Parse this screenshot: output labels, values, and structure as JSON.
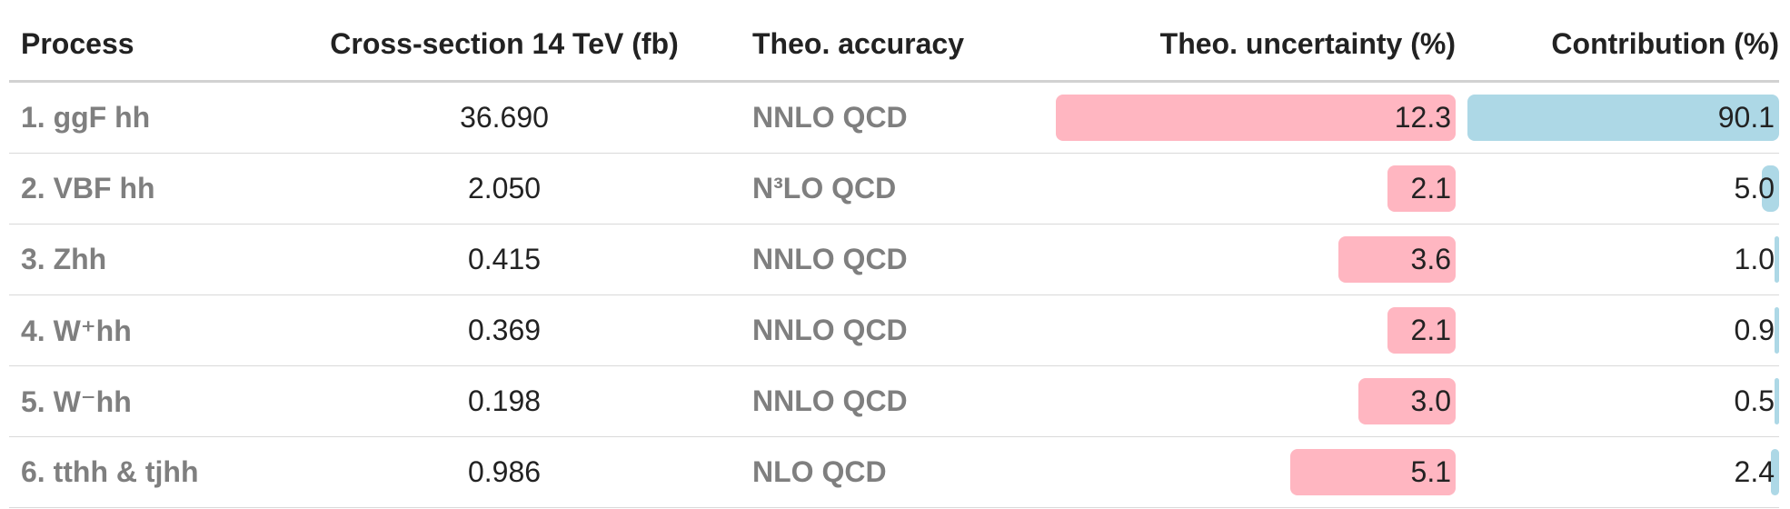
{
  "chart_data": {
    "type": "table",
    "columns": [
      "Process",
      "Cross-section 14 TeV (fb)",
      "Theo. accuracy",
      "Theo. uncertainty (%)",
      "Contribution (%)"
    ],
    "rows": [
      {
        "process": "1. ggF hh",
        "cross_section": "36.690",
        "accuracy": "NNLO QCD",
        "uncertainty": 12.3,
        "uncertainty_label": "12.3",
        "contribution": 90.1,
        "contribution_label": "90.1"
      },
      {
        "process": "2. VBF hh",
        "cross_section": "2.050",
        "accuracy": "N³LO QCD",
        "uncertainty": 2.1,
        "uncertainty_label": "2.1",
        "contribution": 5.0,
        "contribution_label": "5.0"
      },
      {
        "process": "3. Zhh",
        "cross_section": "0.415",
        "accuracy": "NNLO QCD",
        "uncertainty": 3.6,
        "uncertainty_label": "3.6",
        "contribution": 1.0,
        "contribution_label": "1.0"
      },
      {
        "process": "4. W⁺hh",
        "cross_section": "0.369",
        "accuracy": "NNLO QCD",
        "uncertainty": 2.1,
        "uncertainty_label": "2.1",
        "contribution": 0.9,
        "contribution_label": "0.9"
      },
      {
        "process": "5. W⁻hh",
        "cross_section": "0.198",
        "accuracy": "NNLO QCD",
        "uncertainty": 3.0,
        "uncertainty_label": "3.0",
        "contribution": 0.5,
        "contribution_label": "0.5"
      },
      {
        "process": "6. tthh & tjhh",
        "cross_section": "0.986",
        "accuracy": "NLO QCD",
        "uncertainty": 5.1,
        "uncertainty_label": "5.1",
        "contribution": 2.4,
        "contribution_label": "2.4"
      }
    ],
    "uncertainty_bar_max": 12.3,
    "contribution_bar_max": 90.1,
    "colors": {
      "uncertainty_bar": "#ffb6c1",
      "contribution_bar": "#add8e6"
    }
  }
}
